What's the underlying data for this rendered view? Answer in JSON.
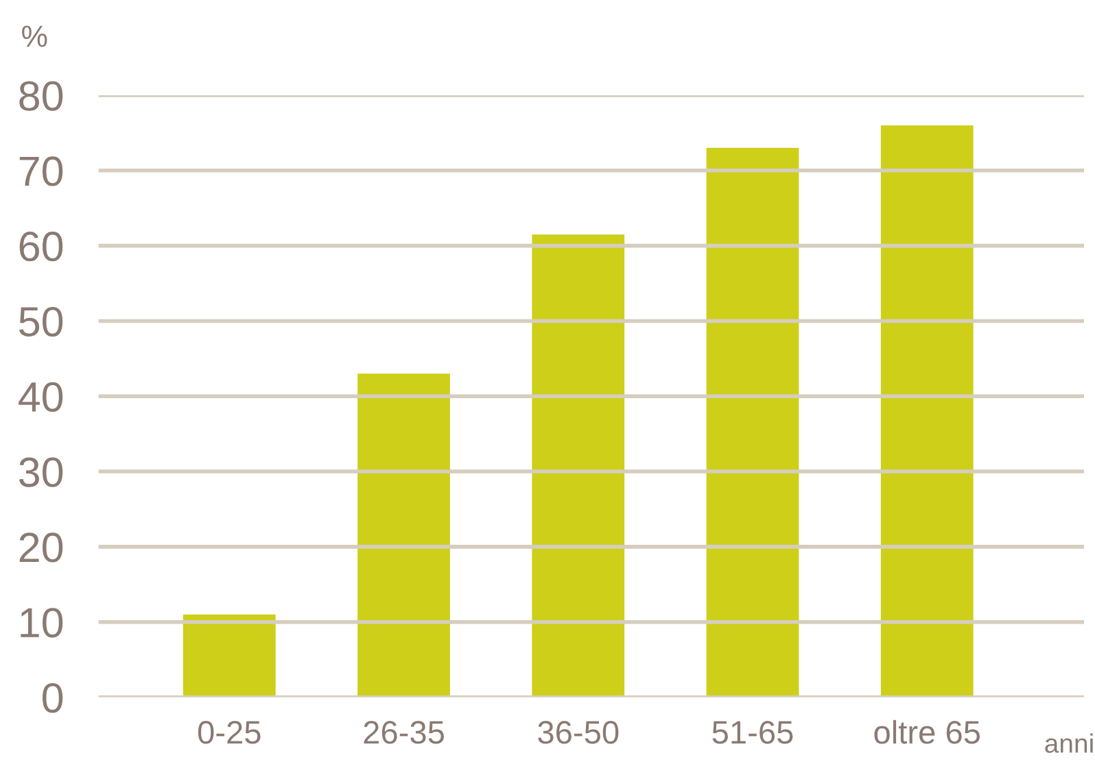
{
  "chart_data": {
    "type": "bar",
    "ylabel": "%",
    "xlabel": "anni",
    "categories": [
      "0-25",
      "26-35",
      "36-50",
      "51-65",
      "oltre 65"
    ],
    "values": [
      11,
      43,
      61.5,
      73,
      76
    ],
    "color": "#cdcf19",
    "ylim": [
      0,
      80
    ],
    "yticks": [
      0,
      10,
      20,
      30,
      40,
      50,
      60,
      70,
      80
    ],
    "grid": "y"
  }
}
